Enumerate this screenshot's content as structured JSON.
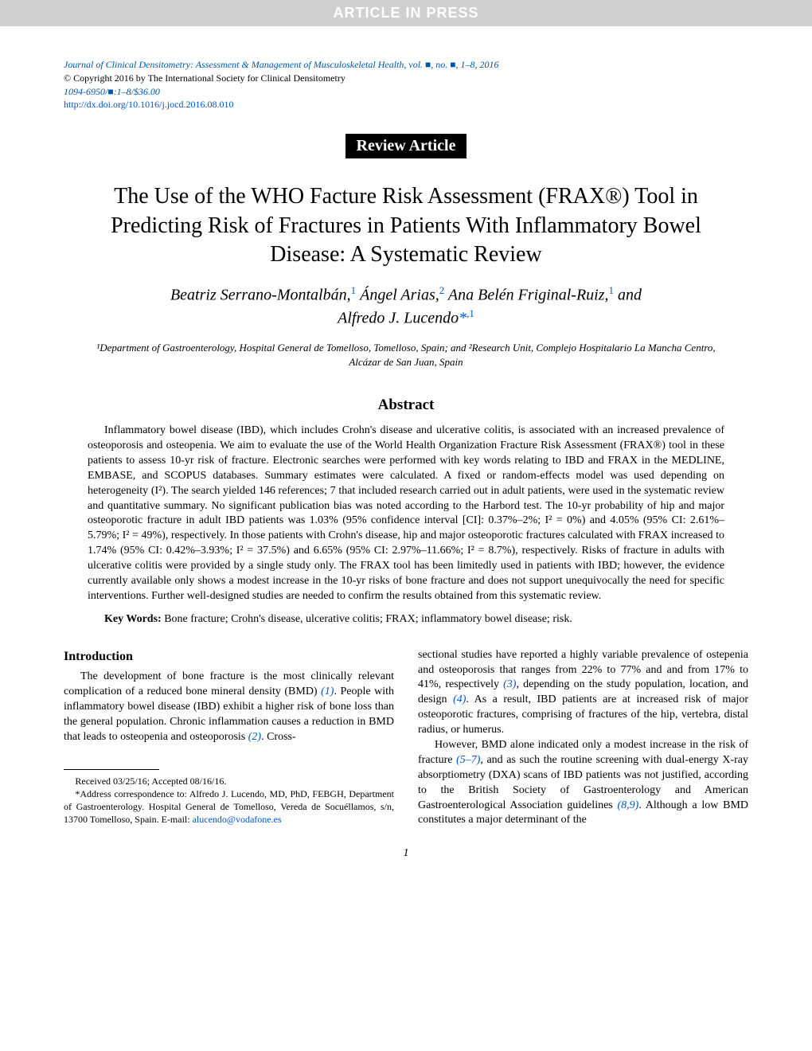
{
  "banner": "ARTICLE IN PRESS",
  "journal": {
    "line1": "Journal of Clinical Densitometry: Assessment & Management of Musculoskeletal Health, vol. ■, no. ■, 1–8, 2016",
    "copyright": "© Copyright 2016 by The International Society for Clinical Densitometry",
    "line3": "1094-6950/■:1–8/$36.00",
    "doi": "http://dx.doi.org/10.1016/j.jocd.2016.08.010"
  },
  "article_type": "Review Article",
  "title": "The Use of the WHO Facture Risk Assessment (FRAX®) Tool in Predicting Risk of Fractures in Patients With Inflammatory Bowel Disease: A Systematic Review",
  "authors": {
    "a1_name": "Beatriz Serrano-Montalbán,",
    "a1_sup": "1",
    "a2_name": " Ángel Arias,",
    "a2_sup": "2",
    "a3_name": " Ana Belén Friginal-Ruiz,",
    "a3_sup": "1",
    "and": " and",
    "a4_name": "Alfredo J. Lucendo",
    "a4_sup": "*,1"
  },
  "affiliations": "¹Department of Gastroenterology, Hospital General de Tomelloso, Tomelloso, Spain; and ²Research Unit, Complejo Hospitalario La Mancha Centro, Alcázar de San Juan, Spain",
  "abstract": {
    "heading": "Abstract",
    "body": "Inflammatory bowel disease (IBD), which includes Crohn's disease and ulcerative colitis, is associated with an increased prevalence of osteoporosis and osteopenia. We aim to evaluate the use of the World Health Organization Fracture Risk Assessment (FRAX®) tool in these patients to assess 10-yr risk of fracture. Electronic searches were performed with key words relating to IBD and FRAX in the MEDLINE, EMBASE, and SCOPUS databases. Summary estimates were calculated. A fixed or random-effects model was used depending on heterogeneity (I²). The search yielded 146 references; 7 that included research carried out in adult patients, were used in the systematic review and quantitative summary. No significant publication bias was noted according to the Harbord test. The 10-yr probability of hip and major osteoporotic fracture in adult IBD patients was 1.03% (95% confidence interval [CI]: 0.37%–2%; I² = 0%) and 4.05% (95% CI: 2.61%–5.79%; I² = 49%), respectively. In those patients with Crohn's disease, hip and major osteoporotic fractures calculated with FRAX increased to 1.74% (95% CI: 0.42%–3.93%; I² = 37.5%) and 6.65% (95% CI: 2.97%–11.66%; I² = 8.7%), respectively. Risks of fracture in adults with ulcerative colitis were provided by a single study only. The FRAX tool has been limitedly used in patients with IBD; however, the evidence currently available only shows a modest increase in the 10-yr risks of bone fracture and does not support unequivocally the need for specific interventions. Further well-designed studies are needed to confirm the results obtained from this systematic review.",
    "keywords_label": "Key Words:",
    "keywords": " Bone fracture; Crohn's disease, ulcerative colitis; FRAX; inflammatory bowel disease; risk."
  },
  "intro": {
    "heading": "Introduction",
    "left_p1a": "The development of bone fracture is the most clinically relevant complication of a reduced bone mineral density (BMD) ",
    "ref1": "(1)",
    "left_p1b": ". People with inflammatory bowel disease (IBD) exhibit a higher risk of bone loss than the general population. Chronic inflammation causes a reduction in BMD that leads to osteopenia and osteoporosis ",
    "ref2": "(2)",
    "left_p1c": ". Cross-",
    "right_p1a": "sectional studies have reported a highly variable prevalence of ostepenia and osteoporosis that ranges from 22% to 77% and and from 17% to 41%, respectively ",
    "ref3": "(3)",
    "right_p1b": ", depending on the study population, location, and design ",
    "ref4": "(4)",
    "right_p1c": ". As a result, IBD patients are at increased risk of major osteoporotic fractures, comprising of fractures of the hip, vertebra, distal radius, or humerus.",
    "right_p2a": "However, BMD alone indicated only a modest increase in the risk of fracture ",
    "ref57": "(5–7)",
    "right_p2b": ", and as such the routine screening with dual-energy X-ray absorptiometry (DXA) scans of IBD patients was not justified, according to the British Society of Gastroenterology and American Gastroenterological Association guidelines ",
    "ref89": "(8,9)",
    "right_p2c": ". Although a low BMD constitutes a major determinant of the"
  },
  "footnote": {
    "received": "Received 03/25/16; Accepted 08/16/16.",
    "corr": "*Address correspondence to: Alfredo J. Lucendo, MD, PhD, FEBGH, Department of Gastroenterology. Hospital General de Tomelloso, Vereda de Socuéllamos, s/n, 13700 Tomelloso, Spain. E-mail: ",
    "email": "alucendo@vodafone.es"
  },
  "page_number": "1",
  "colors": {
    "banner_bg": "#d0d0d0",
    "banner_text": "#ffffff",
    "link_blue": "#0055cc",
    "journal_blue": "#0055aa",
    "article_type_bg": "#000000",
    "article_type_text": "#ffffff",
    "body_text": "#000000",
    "background": "#ffffff"
  }
}
